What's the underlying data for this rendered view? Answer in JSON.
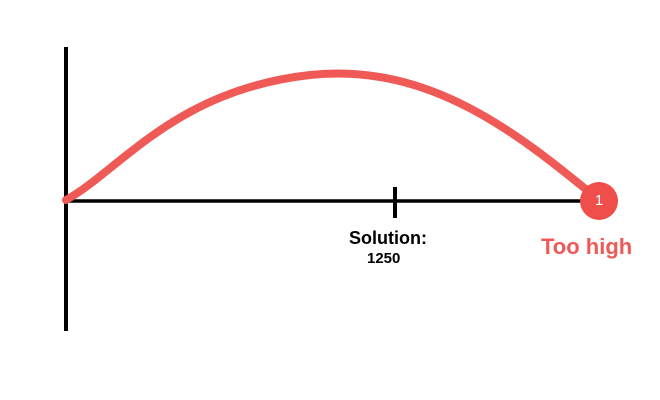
{
  "colors": {
    "curve": "#ef5a57",
    "marker": "#ef4e4b",
    "axis": "#000000",
    "caption": "#ef5a57"
  },
  "solution": {
    "title": "Solution:",
    "value": "1250"
  },
  "marker": {
    "number": "1",
    "caption": "Too high"
  }
}
